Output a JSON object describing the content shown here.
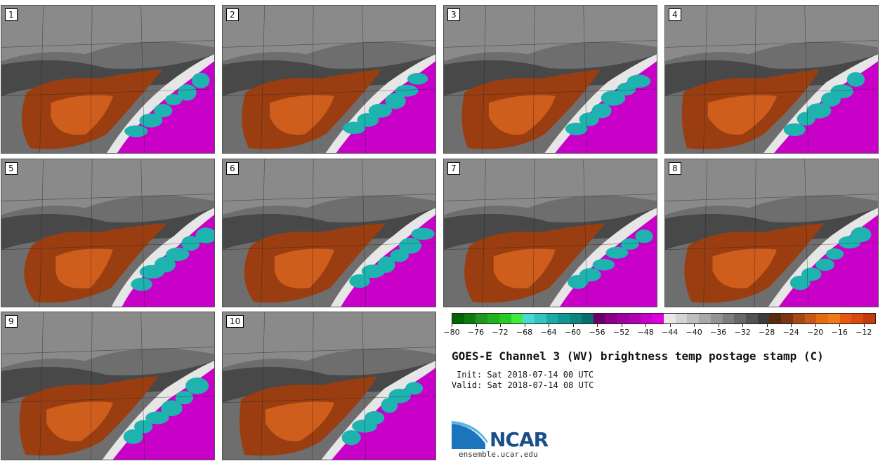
{
  "stamps": [
    {
      "label": "1"
    },
    {
      "label": "2"
    },
    {
      "label": "3"
    },
    {
      "label": "4"
    },
    {
      "label": "5"
    },
    {
      "label": "6"
    },
    {
      "label": "7"
    },
    {
      "label": "8"
    },
    {
      "label": "9"
    },
    {
      "label": "10"
    }
  ],
  "colorbar": {
    "min": -80,
    "max": -10,
    "ticks": [
      "−80",
      "−76",
      "−72",
      "−68",
      "−64",
      "−60",
      "−56",
      "−52",
      "−48",
      "−44",
      "−40",
      "−36",
      "−32",
      "−28",
      "−24",
      "−20",
      "−16",
      "−12"
    ],
    "colors": [
      "#006400",
      "#0f7a0f",
      "#1f961f",
      "#20b020",
      "#25cc25",
      "#3dea3d",
      "#4ad8d0",
      "#32c4c0",
      "#1eaaa8",
      "#12968f",
      "#0c8480",
      "#086e6c",
      "#6a006a",
      "#8a008a",
      "#a000a0",
      "#b400b4",
      "#c800c8",
      "#dc00dc",
      "#e8e8e8",
      "#d4d4d4",
      "#bebebe",
      "#a8a8a8",
      "#939393",
      "#7d7d7d",
      "#686868",
      "#525252",
      "#3c3c3c",
      "#5a2a10",
      "#7a3512",
      "#a34a15",
      "#c75818",
      "#e66a14",
      "#ef7a1a",
      "#e65a10",
      "#d9480d",
      "#c43a0a"
    ]
  },
  "title": "GOES-E Channel 3 (WV) brightness temp postage stamp (C)",
  "init": "Init: Sat 2018-07-14 00 UTC",
  "valid": "Valid: Sat 2018-07-14 08 UTC",
  "logo": {
    "text": "NCAR",
    "site": "ensemble.ucar.edu"
  },
  "palette": {
    "orange_dark": "#9a3e12",
    "orange_light": "#d86420",
    "magenta": "#c800c8",
    "teal": "#1fb3b0",
    "white": "#e6e6e6",
    "gray_dark": "#3e3e3e"
  }
}
